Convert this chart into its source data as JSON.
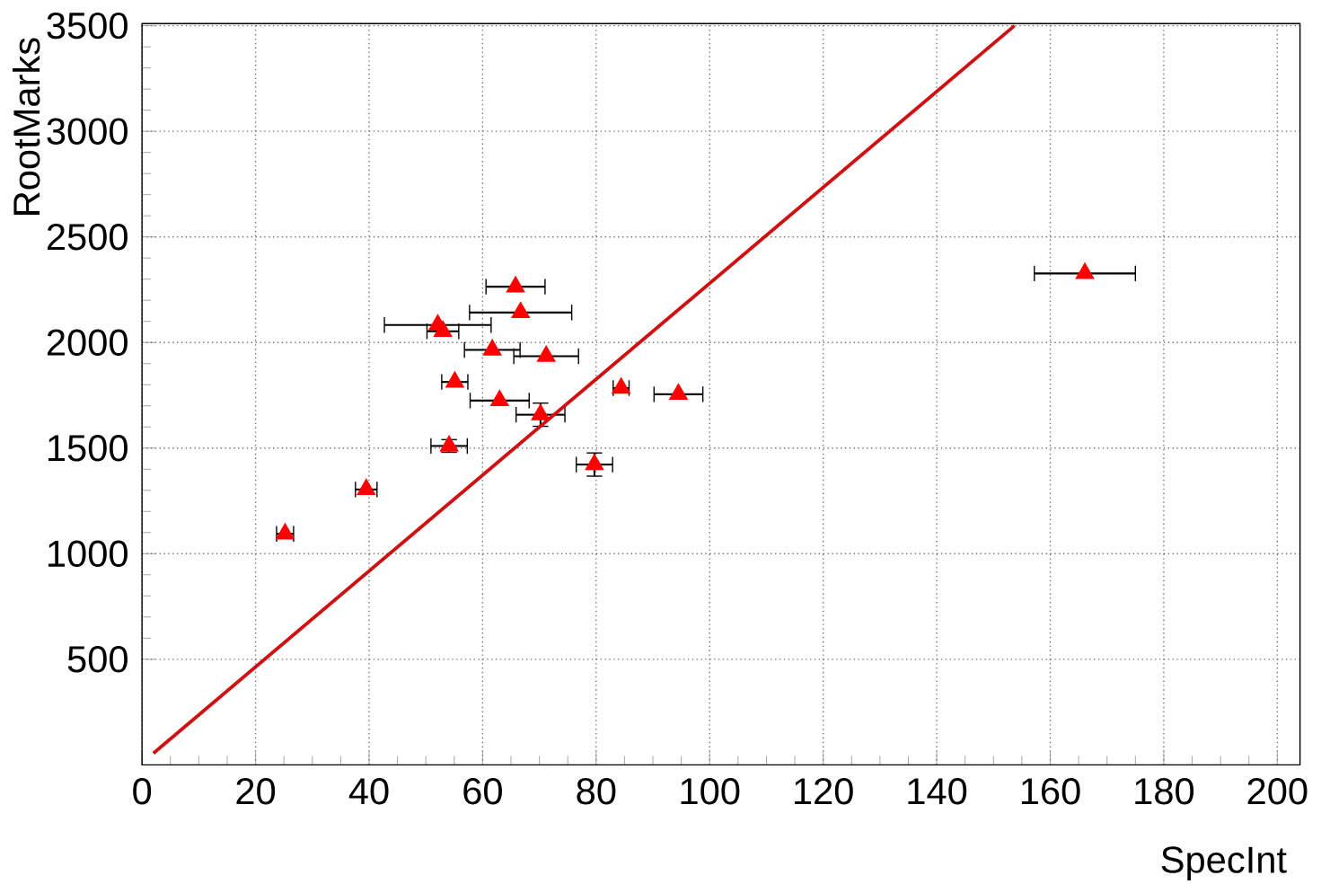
{
  "chart_data": {
    "type": "scatter",
    "xlabel": "SpecInt",
    "ylabel": "RootMarks",
    "xlim": [
      0,
      204
    ],
    "ylim": [
      0,
      3510
    ],
    "xticks": [
      0,
      20,
      40,
      60,
      80,
      100,
      120,
      140,
      160,
      180,
      200
    ],
    "yticks": [
      500,
      1000,
      1500,
      2000,
      2500,
      3000,
      3500
    ],
    "grid": true,
    "marker": "triangle",
    "series": [
      {
        "color": "#ff0000",
        "x": [
          25.2,
          39.5,
          52.1,
          53.0,
          55.1,
          54.1,
          61.7,
          63.0,
          65.8,
          66.7,
          70.2,
          71.2,
          79.7,
          84.4,
          94.5,
          166.1
        ],
        "values": [
          1094,
          1304,
          2083,
          2053,
          1813,
          1510,
          1965,
          1725,
          2264,
          2142,
          1658,
          1935,
          1422,
          1784,
          1755,
          2327
        ],
        "xerrors": [
          1.5,
          1.9,
          9.4,
          2.8,
          2.3,
          3.2,
          4.9,
          5.2,
          5.2,
          9.0,
          4.3,
          5.7,
          3.2,
          1.4,
          4.3,
          8.9
        ],
        "errors": [
          null,
          null,
          null,
          null,
          null,
          30,
          null,
          null,
          null,
          null,
          55,
          null,
          55,
          null,
          null,
          null
        ]
      },
      {
        "type": "line",
        "color": "#d01010",
        "marker": "none",
        "line_style": "solid",
        "x": [
          2.0,
          153.7
        ],
        "values": [
          55,
          3500
        ]
      }
    ]
  }
}
